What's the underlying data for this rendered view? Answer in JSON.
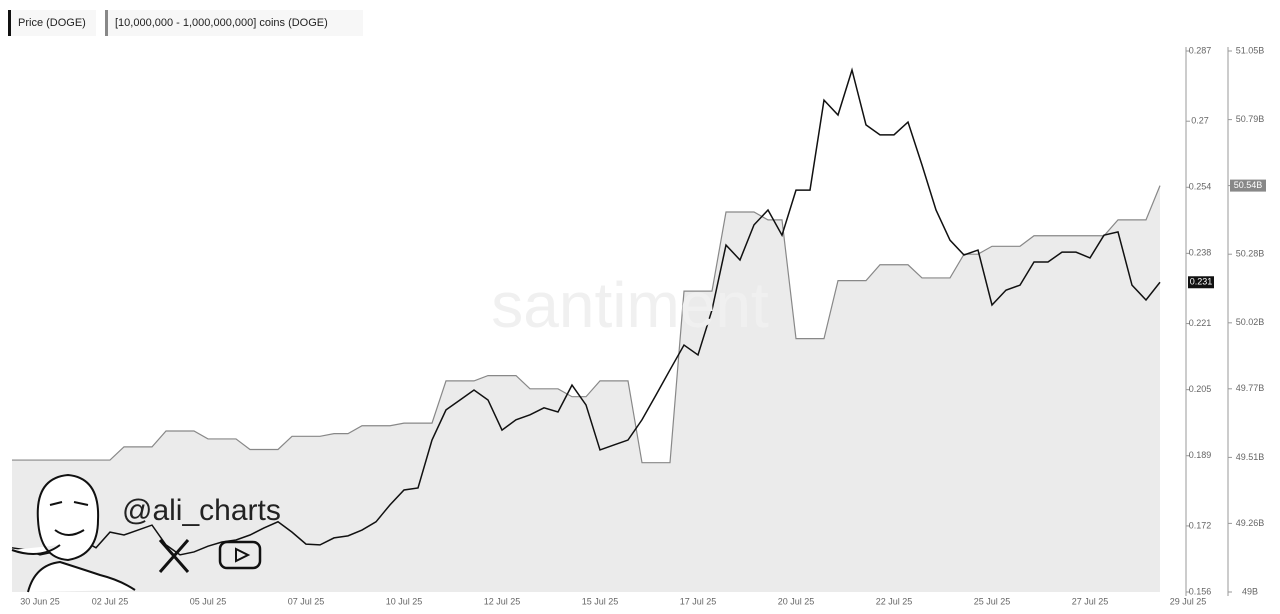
{
  "chart_data": {
    "type": "line",
    "watermark": "santiment",
    "annotation": "@ali_charts",
    "categories": [
      null,
      null,
      "30 Jun 25",
      null,
      null,
      null,
      null,
      "02 Jul 25",
      null,
      null,
      null,
      null,
      null,
      null,
      "05 Jul 25",
      null,
      null,
      null,
      null,
      null,
      null,
      "07 Jul 25",
      null,
      null,
      null,
      null,
      null,
      null,
      "10 Jul 25",
      null,
      null,
      null,
      null,
      null,
      null,
      "12 Jul 25",
      null,
      null,
      null,
      null,
      null,
      null,
      "15 Jul 25",
      null,
      null,
      null,
      null,
      null,
      null,
      "17 Jul 25",
      null,
      null,
      null,
      null,
      null,
      null,
      "20 Jul 25",
      null,
      null,
      null,
      null,
      null,
      null,
      "22 Jul 25",
      null,
      null,
      null,
      null,
      null,
      null,
      "25 Jul 25",
      null,
      null,
      null,
      null,
      null,
      null,
      "27 Jul 25",
      null,
      null,
      null,
      null,
      null,
      null,
      "29 Jul 25"
    ],
    "series": [
      {
        "name": "Price (DOGE)",
        "color": "#111111",
        "values": [
          0.1667,
          0.1662,
          0.165,
          0.1657,
          0.1674,
          0.1686,
          0.1667,
          0.1705,
          0.1698,
          0.171,
          0.1722,
          0.1674,
          0.165,
          0.1657,
          0.1671,
          0.1681,
          0.1686,
          0.1698,
          0.1715,
          0.173,
          0.1705,
          0.1676,
          0.1674,
          0.1691,
          0.1696,
          0.171,
          0.173,
          0.1771,
          0.1807,
          0.1812,
          0.1928,
          0.2001,
          0.2025,
          0.2049,
          0.2025,
          0.1952,
          0.1977,
          0.1989,
          0.2006,
          0.1996,
          0.2061,
          0.2013,
          0.1904,
          0.1916,
          0.1928,
          0.1977,
          0.2037,
          0.2098,
          0.2158,
          0.2134,
          0.2243,
          0.24,
          0.2364,
          0.2449,
          0.2485,
          0.2424,
          0.2533,
          0.2533,
          0.2751,
          0.2715,
          0.2824,
          0.2691,
          0.2667,
          0.2667,
          0.2698,
          0.2594,
          0.2485,
          0.2412,
          0.2376,
          0.2388,
          0.2255,
          0.2291,
          0.2303,
          0.2359,
          0.2359,
          0.2383,
          0.2383,
          0.2369,
          0.2424,
          0.2432,
          0.2303,
          0.2267,
          0.231,
          null,
          null
        ]
      },
      {
        "name": "[10,000,000 - 1,000,000,000] coins (DOGE)",
        "color": "#888888",
        "fill": "#ebebeb",
        "axis": "y2",
        "last_label": "50.54B",
        "values": [
          49.5,
          49.5,
          49.5,
          49.5,
          49.5,
          49.5,
          49.5,
          49.5,
          49.55,
          49.55,
          49.55,
          49.61,
          49.61,
          49.61,
          49.58,
          49.58,
          49.58,
          49.54,
          49.54,
          49.54,
          49.59,
          49.59,
          49.59,
          49.6,
          49.6,
          49.63,
          49.63,
          49.63,
          49.64,
          49.64,
          49.64,
          49.8,
          49.8,
          49.8,
          49.82,
          49.82,
          49.82,
          49.77,
          49.77,
          49.77,
          49.74,
          49.74,
          49.8,
          49.8,
          49.8,
          49.49,
          49.49,
          49.49,
          50.14,
          50.14,
          50.14,
          50.44,
          50.44,
          50.44,
          50.41,
          50.41,
          49.96,
          49.96,
          49.96,
          50.18,
          50.18,
          50.18,
          50.24,
          50.24,
          50.24,
          50.19,
          50.19,
          50.19,
          50.28,
          50.28,
          50.31,
          50.31,
          50.31,
          50.35,
          50.35,
          50.35,
          50.35,
          50.35,
          50.35,
          50.41,
          50.41,
          50.41,
          50.54,
          null,
          null
        ]
      }
    ],
    "ylim": [
      0.156,
      0.287
    ],
    "yticks": [
      0.156,
      0.172,
      0.189,
      0.205,
      0.221,
      0.238,
      0.254,
      0.27,
      0.287
    ],
    "y2lim": [
      49,
      51.05
    ],
    "y2ticks": [
      {
        "value": 49,
        "label": "49B"
      },
      {
        "value": 49.26,
        "label": "49.26B"
      },
      {
        "value": 49.51,
        "label": "49.51B"
      },
      {
        "value": 49.77,
        "label": "49.77B"
      },
      {
        "value": 50.02,
        "label": "50.02B"
      },
      {
        "value": 50.28,
        "label": "50.28B"
      },
      {
        "value": 50.54,
        "label": "50.54B"
      },
      {
        "value": 50.79,
        "label": "50.79B"
      },
      {
        "value": 51.05,
        "label": "51.05B"
      }
    ],
    "grid": false
  }
}
